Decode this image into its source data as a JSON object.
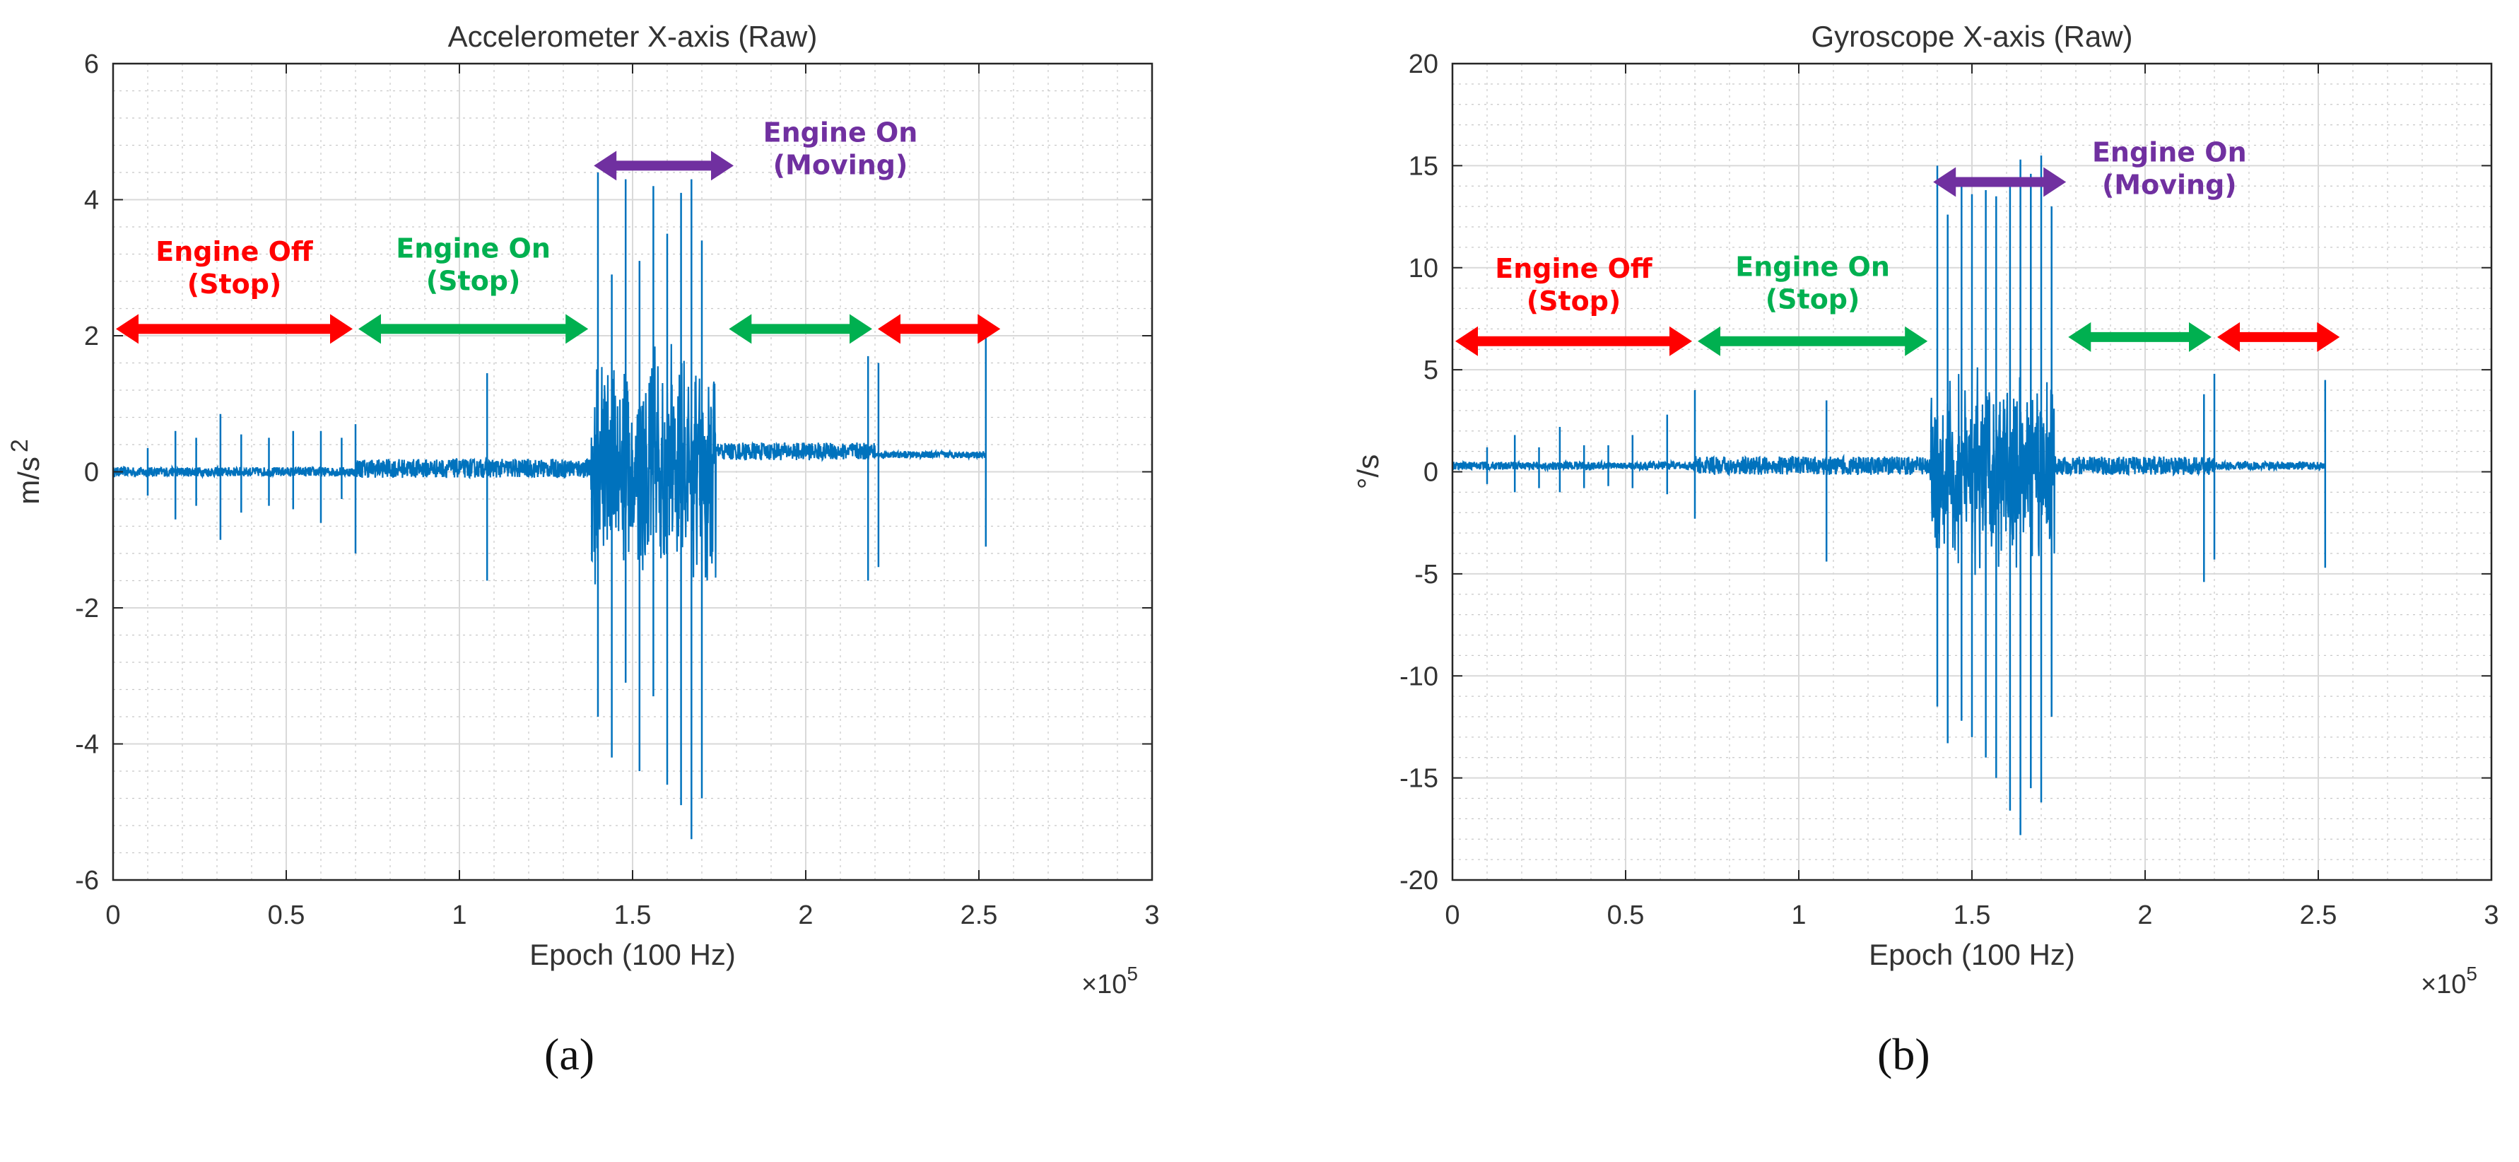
{
  "chart_data": [
    {
      "type": "line",
      "panel_label": "(a)",
      "title": "Accelerometer X-axis (Raw)",
      "xlabel": "Epoch (100 Hz)",
      "ylabel": "m/s",
      "ylabel_superscript": "2",
      "x_multiplier": "×10",
      "x_multiplier_exponent": "5",
      "xlim": [
        0,
        3
      ],
      "ylim": [
        -6,
        6
      ],
      "xticks": [
        0,
        0.5,
        1,
        1.5,
        2,
        2.5,
        3
      ],
      "xtick_labels": [
        "0",
        "0.5",
        "1",
        "1.5",
        "2",
        "2.5",
        "3"
      ],
      "yticks": [
        -6,
        -4,
        -2,
        0,
        2,
        4,
        6
      ],
      "ytick_labels": [
        "-6",
        "-4",
        "-2",
        "0",
        "2",
        "4",
        "6"
      ],
      "grid": true,
      "minor_grid": true,
      "series_color": "#0072bd",
      "segments": [
        {
          "start": 0,
          "end": 0.7,
          "base": 0,
          "noise": 0.07
        },
        {
          "start": 0.7,
          "end": 1.38,
          "base": 0.05,
          "noise": 0.14
        },
        {
          "start": 1.38,
          "end": 1.74,
          "base": 0,
          "noise": 1.6
        },
        {
          "start": 1.74,
          "end": 2.2,
          "base": 0.3,
          "noise": 0.13
        },
        {
          "start": 2.2,
          "end": 2.52,
          "base": 0.25,
          "noise": 0.05
        }
      ],
      "spikes": [
        {
          "x": 0.1,
          "max": 0.35,
          "min": -0.35
        },
        {
          "x": 0.18,
          "max": 0.6,
          "min": -0.7
        },
        {
          "x": 0.24,
          "max": 0.5,
          "min": -0.5
        },
        {
          "x": 0.31,
          "max": 0.85,
          "min": -1.0
        },
        {
          "x": 0.37,
          "max": 0.55,
          "min": -0.6
        },
        {
          "x": 0.45,
          "max": 0.5,
          "min": -0.5
        },
        {
          "x": 0.52,
          "max": 0.6,
          "min": -0.55
        },
        {
          "x": 0.6,
          "max": 0.6,
          "min": -0.75
        },
        {
          "x": 0.66,
          "max": 0.5,
          "min": -0.4
        },
        {
          "x": 0.7,
          "max": 0.7,
          "min": -1.2
        },
        {
          "x": 1.08,
          "max": 1.45,
          "min": -1.6
        },
        {
          "x": 1.4,
          "max": 4.4,
          "min": -3.6
        },
        {
          "x": 1.44,
          "max": 2.9,
          "min": -4.2
        },
        {
          "x": 1.48,
          "max": 4.3,
          "min": -3.1
        },
        {
          "x": 1.52,
          "max": 3.1,
          "min": -4.4
        },
        {
          "x": 1.56,
          "max": 4.2,
          "min": -3.3
        },
        {
          "x": 1.6,
          "max": 3.5,
          "min": -4.6
        },
        {
          "x": 1.64,
          "max": 4.1,
          "min": -4.9
        },
        {
          "x": 1.67,
          "max": 4.3,
          "min": -5.4
        },
        {
          "x": 1.7,
          "max": 3.4,
          "min": -4.8
        },
        {
          "x": 2.18,
          "max": 1.7,
          "min": -1.6
        },
        {
          "x": 2.21,
          "max": 1.6,
          "min": -1.4
        },
        {
          "x": 2.52,
          "max": 2.1,
          "min": -1.1
        }
      ],
      "annotations": [
        {
          "lines": [
            "Engine Off",
            "(Stop)"
          ],
          "x_start": 0,
          "x_end": 0.7,
          "y_arrow": 2.1,
          "y_text": 3.1,
          "text_x": 0.35,
          "color": "#ff0000"
        },
        {
          "lines": [
            "Engine On",
            "(Stop)"
          ],
          "x_start": 0.7,
          "x_end": 1.38,
          "y_arrow": 2.1,
          "y_text": 3.15,
          "text_x": 1.04,
          "color": "#00b050"
        },
        {
          "lines": [
            "Engine On",
            "(Moving)"
          ],
          "x_start": 1.38,
          "x_end": 1.8,
          "y_arrow": 4.5,
          "y_text": 4.85,
          "text_x": 2.1,
          "color": "#7030a0"
        },
        {
          "lines": [],
          "x_start": 1.77,
          "x_end": 2.2,
          "y_arrow": 2.1,
          "y_text": 0,
          "text_x": 0,
          "color": "#00b050"
        },
        {
          "lines": [],
          "x_start": 2.2,
          "x_end": 2.57,
          "y_arrow": 2.1,
          "y_text": 0,
          "text_x": 0,
          "color": "#ff0000"
        }
      ]
    },
    {
      "type": "line",
      "panel_label": "(b)",
      "title": "Gyroscope X-axis (Raw)",
      "xlabel": "Epoch (100 Hz)",
      "ylabel": "°/s",
      "ylabel_superscript": "",
      "x_multiplier": "×10",
      "x_multiplier_exponent": "5",
      "xlim": [
        0,
        3
      ],
      "ylim": [
        -20,
        20
      ],
      "xticks": [
        0,
        0.5,
        1,
        1.5,
        2,
        2.5,
        3
      ],
      "xtick_labels": [
        "0",
        "0.5",
        "1",
        "1.5",
        "2",
        "2.5",
        "3"
      ],
      "yticks": [
        -20,
        -15,
        -10,
        -5,
        0,
        5,
        10,
        15,
        20
      ],
      "ytick_labels": [
        "-20",
        "-15",
        "-10",
        "-5",
        "0",
        "5",
        "10",
        "15",
        "20"
      ],
      "grid": true,
      "minor_grid": true,
      "series_color": "#0072bd",
      "segments": [
        {
          "start": 0,
          "end": 0.7,
          "base": 0.3,
          "noise": 0.2
        },
        {
          "start": 0.7,
          "end": 1.38,
          "base": 0.3,
          "noise": 0.45
        },
        {
          "start": 1.38,
          "end": 1.74,
          "base": 0,
          "noise": 4.2
        },
        {
          "start": 1.74,
          "end": 2.2,
          "base": 0.3,
          "noise": 0.45
        },
        {
          "start": 2.2,
          "end": 2.52,
          "base": 0.3,
          "noise": 0.2
        }
      ],
      "spikes": [
        {
          "x": 0.1,
          "max": 1.2,
          "min": -0.6
        },
        {
          "x": 0.18,
          "max": 1.8,
          "min": -1.0
        },
        {
          "x": 0.25,
          "max": 1.2,
          "min": -0.8
        },
        {
          "x": 0.31,
          "max": 2.2,
          "min": -1.0
        },
        {
          "x": 0.38,
          "max": 1.3,
          "min": -0.8
        },
        {
          "x": 0.45,
          "max": 1.3,
          "min": -0.7
        },
        {
          "x": 0.52,
          "max": 1.8,
          "min": -0.8
        },
        {
          "x": 0.62,
          "max": 2.8,
          "min": -1.1
        },
        {
          "x": 0.7,
          "max": 4.0,
          "min": -2.3
        },
        {
          "x": 1.08,
          "max": 3.5,
          "min": -4.4
        },
        {
          "x": 1.4,
          "max": 15.0,
          "min": -11.5
        },
        {
          "x": 1.43,
          "max": 12.6,
          "min": -13.3
        },
        {
          "x": 1.47,
          "max": 14.0,
          "min": -12.2
        },
        {
          "x": 1.5,
          "max": 13.6,
          "min": -13.0
        },
        {
          "x": 1.54,
          "max": 13.8,
          "min": -14.0
        },
        {
          "x": 1.57,
          "max": 13.5,
          "min": -15.0
        },
        {
          "x": 1.61,
          "max": 14.2,
          "min": -16.6
        },
        {
          "x": 1.64,
          "max": 15.3,
          "min": -17.8
        },
        {
          "x": 1.67,
          "max": 14.6,
          "min": -15.5
        },
        {
          "x": 1.7,
          "max": 15.5,
          "min": -16.2
        },
        {
          "x": 1.73,
          "max": 13.0,
          "min": -12.0
        },
        {
          "x": 2.17,
          "max": 3.8,
          "min": -5.4
        },
        {
          "x": 2.2,
          "max": 4.8,
          "min": -4.3
        },
        {
          "x": 2.52,
          "max": 4.5,
          "min": -4.7
        }
      ],
      "annotations": [
        {
          "lines": [
            "Engine Off",
            "(Stop)"
          ],
          "x_start": 0,
          "x_end": 0.7,
          "y_arrow": 6.4,
          "y_text": 9.5,
          "text_x": 0.35,
          "color": "#ff0000"
        },
        {
          "lines": [
            "Engine On",
            "(Stop)"
          ],
          "x_start": 0.7,
          "x_end": 1.38,
          "y_arrow": 6.4,
          "y_text": 9.6,
          "text_x": 1.04,
          "color": "#00b050"
        },
        {
          "lines": [
            "Engine On",
            "(Moving)"
          ],
          "x_start": 1.38,
          "x_end": 1.78,
          "y_arrow": 14.2,
          "y_text": 15.2,
          "text_x": 2.07,
          "color": "#7030a0"
        },
        {
          "lines": [],
          "x_start": 1.77,
          "x_end": 2.2,
          "y_arrow": 6.6,
          "y_text": 0,
          "text_x": 0,
          "color": "#00b050"
        },
        {
          "lines": [],
          "x_start": 2.2,
          "x_end": 2.57,
          "y_arrow": 6.6,
          "y_text": 0,
          "text_x": 0,
          "color": "#ff0000"
        }
      ]
    }
  ]
}
